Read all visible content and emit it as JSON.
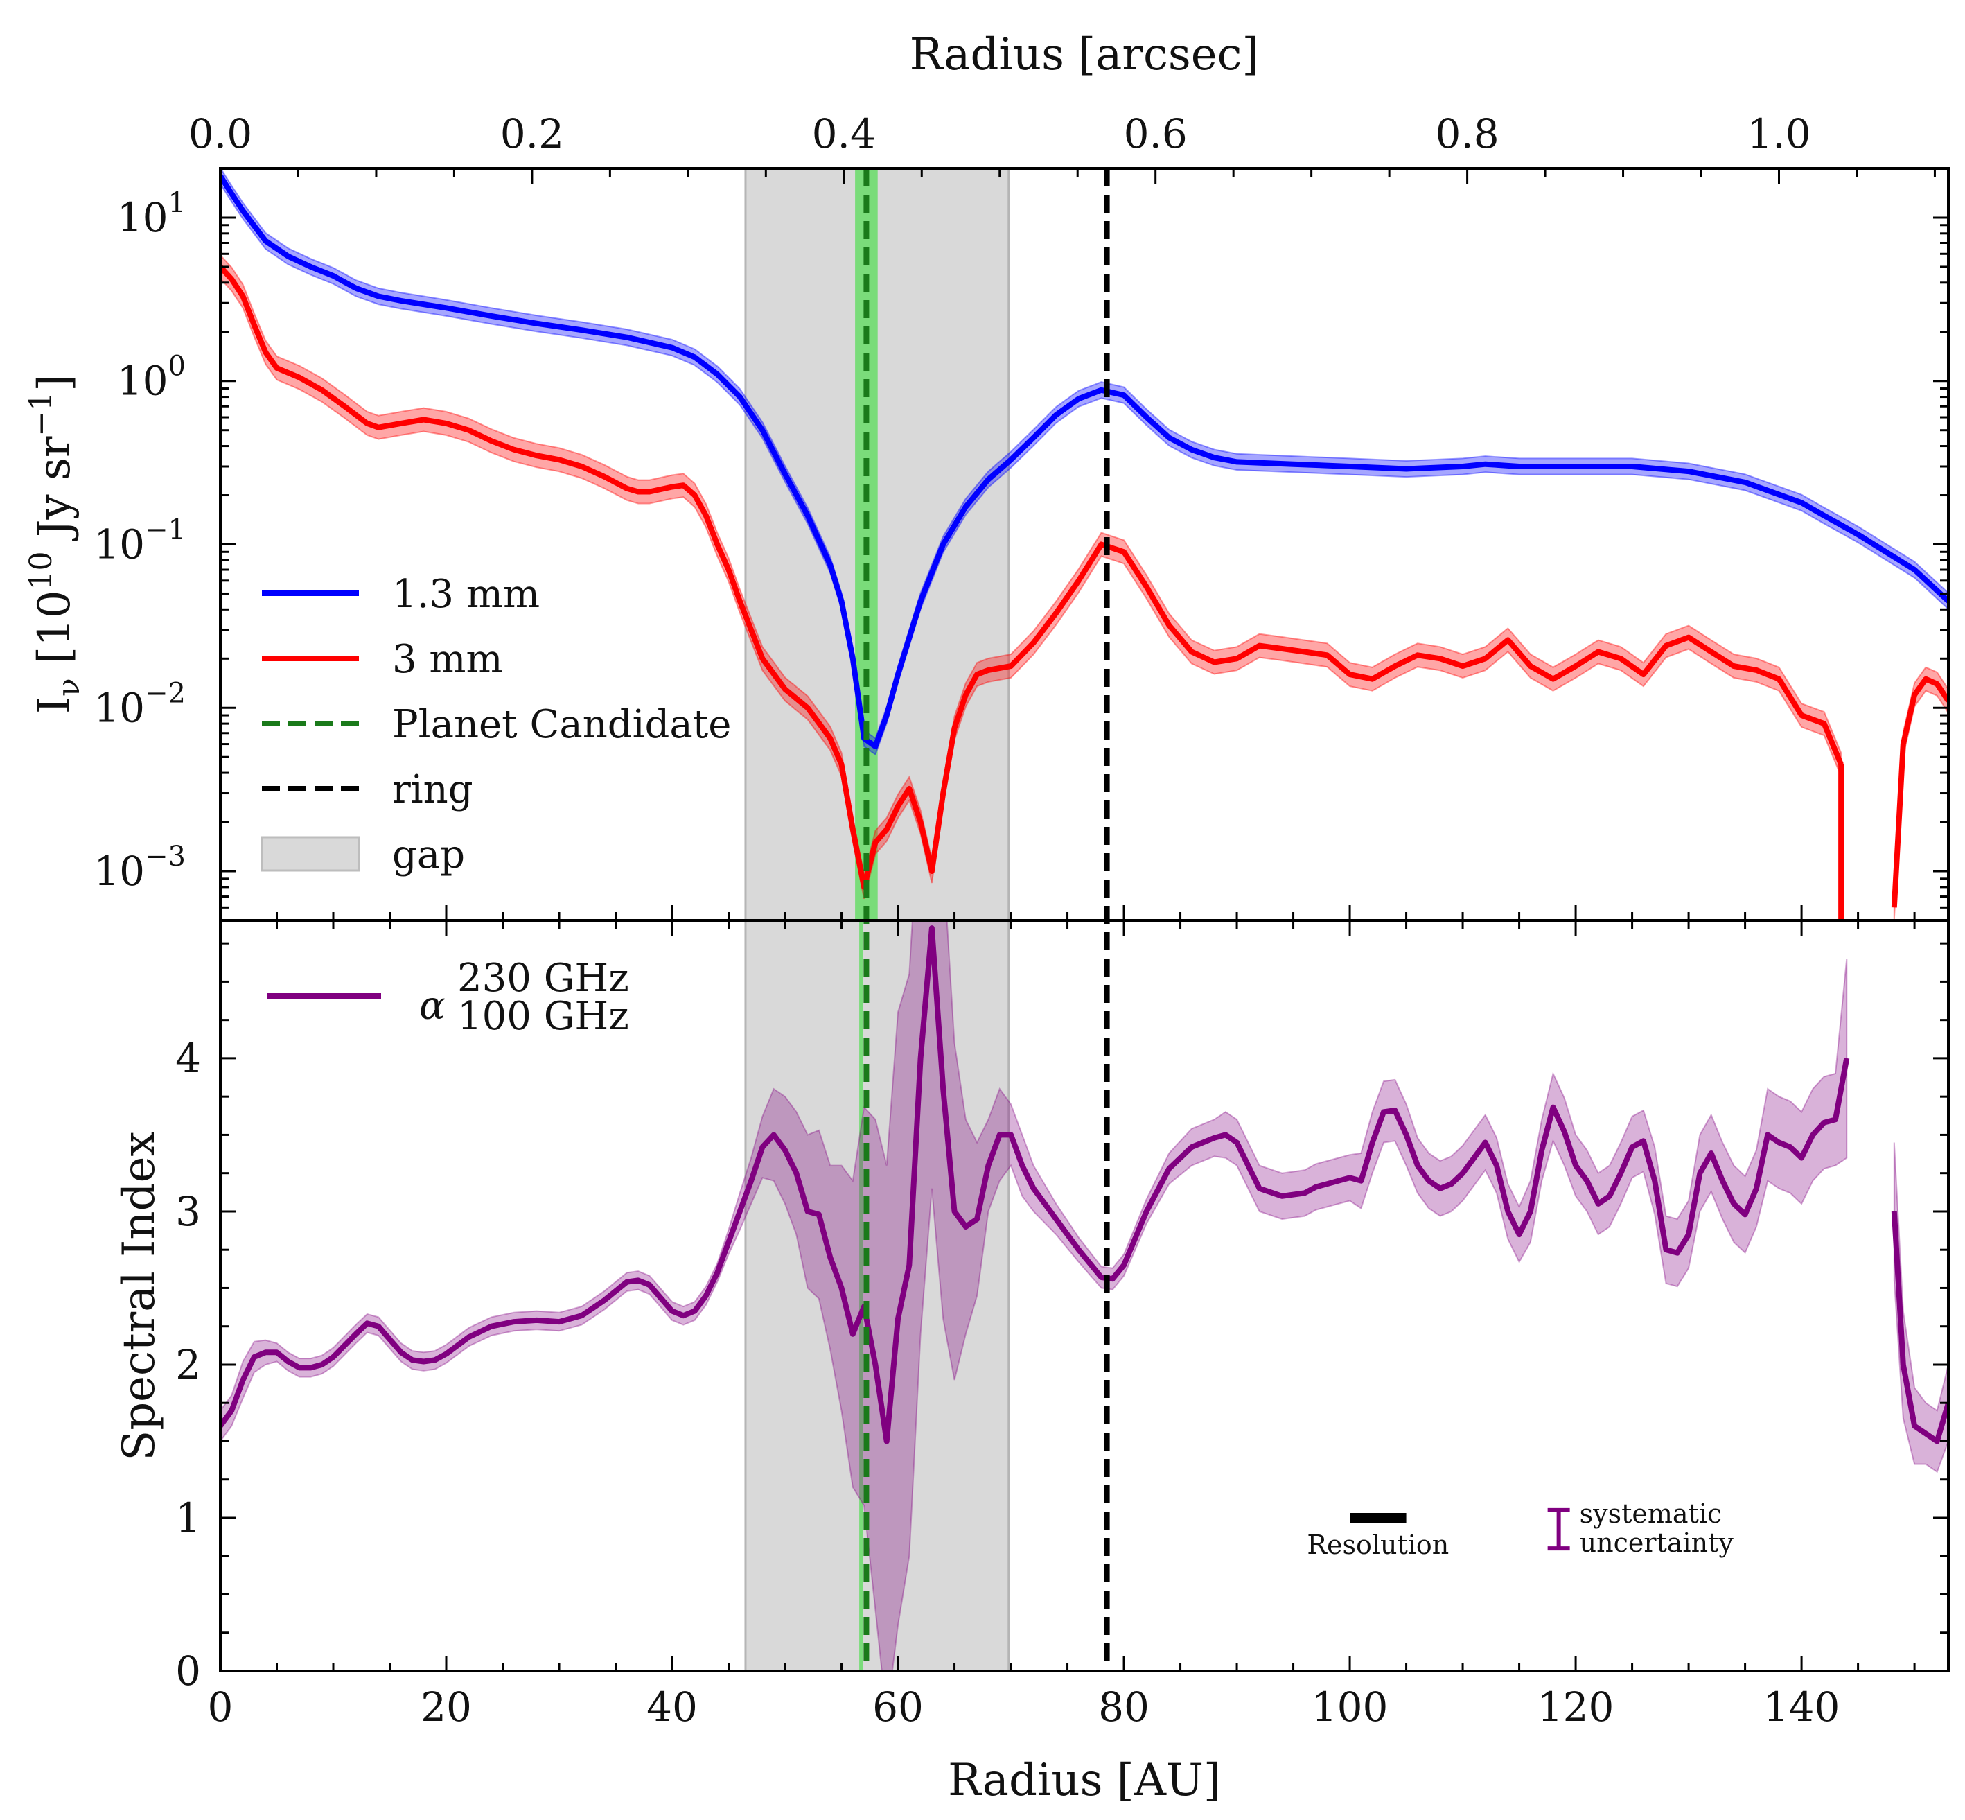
{
  "chart_data": {
    "type": "line",
    "top_axis": {
      "label": "Radius [arcsec]",
      "ticks": [
        0.0,
        0.2,
        0.4,
        0.6,
        0.8,
        1.0
      ],
      "tick_labels": [
        "0.0",
        "0.2",
        "0.4",
        "0.6",
        "0.8",
        "1.0"
      ],
      "au_per_arcsec": 138
    },
    "x_axis": {
      "label": "Radius [AU]",
      "range": [
        0,
        153
      ],
      "ticks": [
        0,
        20,
        40,
        60,
        80,
        100,
        120,
        140
      ],
      "tick_labels": [
        "0",
        "20",
        "40",
        "60",
        "80",
        "100",
        "120",
        "140"
      ]
    },
    "markers": {
      "gap": {
        "label": "gap",
        "x0": 46.5,
        "x1": 69.8,
        "color": "#bdbdbd"
      },
      "planet": {
        "label": "Planet Candidate",
        "x": 57.2,
        "band": [
          56.2,
          58.2
        ],
        "color": "#1a7a1a",
        "band_color": "#6fdc6f"
      },
      "ring": {
        "label": "ring",
        "x": 78.5,
        "color": "#000000"
      }
    },
    "top_panel": {
      "ylabel": "I_ν [10^10 Jy sr^-1]",
      "yscale": "log",
      "ylim": [
        0.0005,
        20
      ],
      "yticks": [
        {
          "value": 10,
          "base": "10",
          "exp": "1"
        },
        {
          "value": 1,
          "base": "10",
          "exp": "0"
        },
        {
          "value": 0.1,
          "base": "10",
          "exp": "−1"
        },
        {
          "value": 0.01,
          "base": "10",
          "exp": "−2"
        },
        {
          "value": 0.001,
          "base": "10",
          "exp": "−3"
        }
      ],
      "series": [
        {
          "name": "1.3 mm",
          "color": "#0000ff",
          "band_frac": 0.12,
          "x": [
            0,
            1,
            2,
            4,
            6,
            8,
            10,
            12,
            14,
            16,
            20,
            24,
            28,
            32,
            36,
            40,
            42,
            44,
            46,
            48,
            50,
            52,
            54,
            55,
            56,
            57,
            58,
            59,
            60,
            62,
            64,
            66,
            68,
            70,
            72,
            74,
            76,
            78,
            80,
            82,
            84,
            86,
            88,
            90,
            95,
            100,
            105,
            110,
            112,
            115,
            120,
            125,
            130,
            135,
            140,
            142,
            145,
            150,
            153
          ],
          "y": [
            18,
            14,
            11,
            7.2,
            5.8,
            5.0,
            4.4,
            3.7,
            3.3,
            3.1,
            2.8,
            2.5,
            2.25,
            2.05,
            1.85,
            1.6,
            1.4,
            1.1,
            0.8,
            0.5,
            0.27,
            0.15,
            0.075,
            0.045,
            0.02,
            0.0065,
            0.0058,
            0.009,
            0.016,
            0.045,
            0.1,
            0.17,
            0.25,
            0.33,
            0.45,
            0.62,
            0.78,
            0.88,
            0.82,
            0.6,
            0.45,
            0.38,
            0.34,
            0.32,
            0.31,
            0.3,
            0.29,
            0.3,
            0.31,
            0.3,
            0.3,
            0.3,
            0.28,
            0.24,
            0.18,
            0.15,
            0.115,
            0.07,
            0.045
          ]
        },
        {
          "name": "3 mm",
          "color": "#ff0000",
          "band_frac": 0.18,
          "x": [
            0,
            1,
            2,
            3,
            4,
            5,
            7,
            9,
            11,
            13,
            14,
            16,
            18,
            20,
            22,
            24,
            26,
            28,
            30,
            32,
            34,
            36,
            37,
            38,
            40,
            41,
            42,
            43,
            44,
            45,
            46,
            47,
            48,
            50,
            52,
            54,
            55,
            56,
            57,
            58,
            59,
            60,
            61,
            62,
            63,
            64,
            65,
            66,
            67,
            68,
            70,
            72,
            74,
            76,
            78,
            80,
            82,
            84,
            86,
            88,
            90,
            92,
            94,
            96,
            98,
            100,
            102,
            104,
            106,
            108,
            110,
            112,
            114,
            116,
            118,
            120,
            122,
            124,
            126,
            128,
            130,
            132,
            134,
            136,
            138,
            140,
            142,
            143.5
          ],
          "y": [
            5.0,
            4.2,
            3.3,
            2.2,
            1.5,
            1.2,
            1.05,
            0.88,
            0.7,
            0.55,
            0.52,
            0.55,
            0.58,
            0.55,
            0.5,
            0.43,
            0.38,
            0.35,
            0.33,
            0.3,
            0.26,
            0.22,
            0.21,
            0.21,
            0.225,
            0.23,
            0.2,
            0.15,
            0.1,
            0.07,
            0.045,
            0.03,
            0.02,
            0.013,
            0.01,
            0.0065,
            0.0045,
            0.0018,
            0.0008,
            0.0015,
            0.0018,
            0.0025,
            0.0032,
            0.002,
            0.001,
            0.003,
            0.0075,
            0.012,
            0.016,
            0.017,
            0.018,
            0.025,
            0.038,
            0.06,
            0.1,
            0.09,
            0.055,
            0.032,
            0.022,
            0.019,
            0.02,
            0.024,
            0.023,
            0.022,
            0.021,
            0.016,
            0.015,
            0.018,
            0.021,
            0.02,
            0.018,
            0.02,
            0.026,
            0.018,
            0.015,
            0.018,
            0.022,
            0.02,
            0.016,
            0.024,
            0.027,
            0.022,
            0.018,
            0.017,
            0.015,
            0.009,
            0.008,
            0.0045
          ]
        },
        {
          "name": "3 mm tail",
          "legend": false,
          "color": "#ff0000",
          "band_frac": 0.18,
          "x": [
            148.2,
            149,
            150,
            151,
            152,
            153
          ],
          "y": [
            0.0006,
            0.006,
            0.012,
            0.015,
            0.014,
            0.011
          ]
        }
      ],
      "legend": [
        "1.3 mm",
        "3 mm",
        "Planet Candidate",
        "ring",
        "gap"
      ]
    },
    "bottom_panel": {
      "ylabel": "Spectral Index",
      "ylim": [
        0,
        4.9
      ],
      "yticks": [
        0,
        1,
        2,
        3,
        4
      ],
      "ytick_labels": [
        "0",
        "1",
        "2",
        "3",
        "4"
      ],
      "series": [
        {
          "name": "α 230 GHz / 100 GHz",
          "legend_base": "α",
          "legend_sup": "230 GHz",
          "legend_sub": "100 GHz",
          "color": "#800080",
          "x": [
            0,
            1,
            2,
            3,
            4,
            5,
            6,
            7,
            8,
            9,
            10,
            12,
            13,
            14,
            16,
            17,
            18,
            19,
            20,
            22,
            24,
            26,
            28,
            30,
            32,
            34,
            36,
            37,
            38,
            40,
            41,
            42,
            43,
            44,
            45,
            46,
            47,
            48,
            49,
            50,
            51,
            52,
            53,
            54,
            55,
            56,
            57,
            58,
            59,
            60,
            61,
            62,
            63,
            64,
            65,
            66,
            67,
            68,
            69,
            70,
            71,
            72,
            74,
            76,
            78,
            79,
            80,
            82,
            84,
            86,
            88,
            89,
            90,
            91,
            92,
            94,
            96,
            97,
            98,
            99,
            100,
            101,
            102,
            103,
            104,
            105,
            106,
            107,
            108,
            109,
            110,
            111,
            112,
            113,
            114,
            115,
            116,
            117,
            118,
            119,
            120,
            121,
            122,
            123,
            124,
            125,
            126,
            127,
            128,
            129,
            130,
            131,
            132,
            133,
            134,
            135,
            136,
            137,
            138,
            139,
            140,
            141,
            142,
            143,
            144
          ],
          "y": [
            1.6,
            1.7,
            1.9,
            2.05,
            2.08,
            2.08,
            2.02,
            1.98,
            1.98,
            2.0,
            2.05,
            2.2,
            2.27,
            2.25,
            2.08,
            2.03,
            2.02,
            2.03,
            2.07,
            2.18,
            2.25,
            2.28,
            2.29,
            2.28,
            2.32,
            2.42,
            2.54,
            2.55,
            2.52,
            2.35,
            2.32,
            2.35,
            2.45,
            2.6,
            2.8,
            3.0,
            3.2,
            3.42,
            3.5,
            3.4,
            3.25,
            3.0,
            2.98,
            2.7,
            2.5,
            2.2,
            2.38,
            2.0,
            1.5,
            2.3,
            2.65,
            4.0,
            4.85,
            3.8,
            3.0,
            2.9,
            2.95,
            3.3,
            3.5,
            3.5,
            3.3,
            3.15,
            2.95,
            2.75,
            2.57,
            2.56,
            2.65,
            3.0,
            3.28,
            3.42,
            3.48,
            3.5,
            3.45,
            3.3,
            3.15,
            3.1,
            3.12,
            3.16,
            3.18,
            3.2,
            3.22,
            3.2,
            3.45,
            3.65,
            3.66,
            3.5,
            3.3,
            3.2,
            3.15,
            3.18,
            3.25,
            3.35,
            3.45,
            3.3,
            3.0,
            2.85,
            3.0,
            3.4,
            3.68,
            3.52,
            3.3,
            3.2,
            3.05,
            3.1,
            3.25,
            3.42,
            3.46,
            3.2,
            2.75,
            2.73,
            2.85,
            3.25,
            3.38,
            3.2,
            3.05,
            2.98,
            3.15,
            3.5,
            3.45,
            3.42,
            3.35,
            3.5,
            3.58,
            3.6,
            4.0
          ],
          "band": [
            0.1,
            0.1,
            0.12,
            0.1,
            0.08,
            0.06,
            0.06,
            0.06,
            0.06,
            0.06,
            0.06,
            0.06,
            0.06,
            0.06,
            0.06,
            0.06,
            0.06,
            0.06,
            0.06,
            0.06,
            0.06,
            0.06,
            0.06,
            0.06,
            0.06,
            0.06,
            0.06,
            0.06,
            0.06,
            0.06,
            0.06,
            0.06,
            0.06,
            0.06,
            0.08,
            0.12,
            0.15,
            0.2,
            0.3,
            0.35,
            0.4,
            0.5,
            0.55,
            0.6,
            0.8,
            1.0,
            1.3,
            1.6,
            1.8,
            2.0,
            1.9,
            1.8,
            1.7,
            1.5,
            1.1,
            0.7,
            0.5,
            0.3,
            0.3,
            0.2,
            0.2,
            0.15,
            0.1,
            0.08,
            0.07,
            0.07,
            0.07,
            0.08,
            0.1,
            0.12,
            0.12,
            0.15,
            0.15,
            0.15,
            0.15,
            0.15,
            0.15,
            0.15,
            0.15,
            0.15,
            0.15,
            0.18,
            0.2,
            0.2,
            0.2,
            0.2,
            0.18,
            0.18,
            0.18,
            0.18,
            0.18,
            0.18,
            0.18,
            0.18,
            0.18,
            0.18,
            0.2,
            0.2,
            0.22,
            0.22,
            0.2,
            0.2,
            0.2,
            0.2,
            0.2,
            0.2,
            0.2,
            0.22,
            0.22,
            0.22,
            0.22,
            0.25,
            0.25,
            0.25,
            0.25,
            0.25,
            0.25,
            0.3,
            0.3,
            0.3,
            0.3,
            0.3,
            0.3,
            0.3,
            0.65
          ]
        },
        {
          "name": "α tail",
          "legend": false,
          "color": "#800080",
          "x": [
            148.2,
            149,
            150,
            151,
            152,
            153
          ],
          "y": [
            3.0,
            2.0,
            1.6,
            1.55,
            1.5,
            1.75
          ],
          "band": [
            0.45,
            0.35,
            0.25,
            0.2,
            0.2,
            0.25
          ]
        }
      ],
      "resolution": {
        "label": "Resolution",
        "x0": 100,
        "x1": 105,
        "y": 1.0
      },
      "systematic": {
        "label_line1": "systematic",
        "label_line2": "uncertainty",
        "x": 118.5,
        "y0": 0.8,
        "y1": 1.05
      }
    }
  }
}
